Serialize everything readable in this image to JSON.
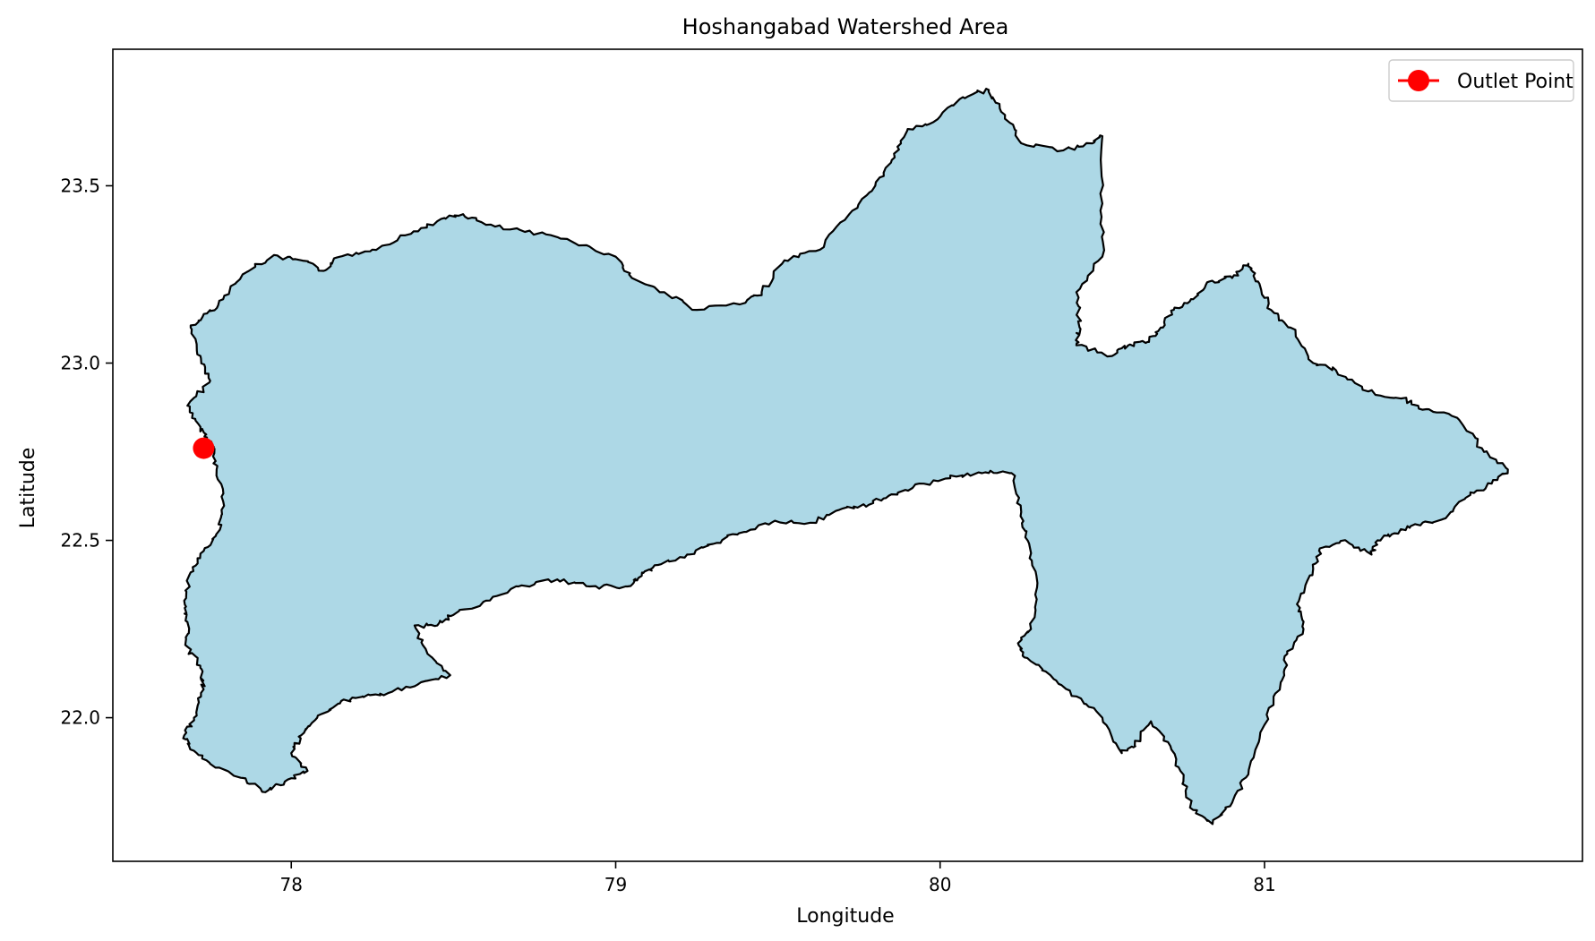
{
  "chart_data": {
    "type": "map",
    "title": "Hoshangabad Watershed Area",
    "xlabel": "Longitude",
    "ylabel": "Latitude",
    "xlim": [
      77.45,
      81.98
    ],
    "ylim": [
      21.595,
      23.885
    ],
    "xticks": [
      78,
      79,
      80,
      81
    ],
    "xtick_labels": [
      "78",
      "79",
      "80",
      "81"
    ],
    "yticks": [
      22.0,
      22.5,
      23.0,
      23.5
    ],
    "ytick_labels": [
      "22.0",
      "22.5",
      "23.0",
      "23.5"
    ],
    "grid": false,
    "legend": {
      "placement": "top-right",
      "entries": [
        {
          "label": "Outlet Point",
          "marker": "circle",
          "color": "#ff0000"
        }
      ]
    },
    "watershed": {
      "fill": "#add8e6",
      "edge": "#000000",
      "boundary_lonlat": [
        [
          77.72,
          22.82
        ],
        [
          77.68,
          22.88
        ],
        [
          77.75,
          22.95
        ],
        [
          77.72,
          23.02
        ],
        [
          77.69,
          23.1
        ],
        [
          77.74,
          23.14
        ],
        [
          77.79,
          23.18
        ],
        [
          77.85,
          23.25
        ],
        [
          77.94,
          23.3
        ],
        [
          78.03,
          23.29
        ],
        [
          78.1,
          23.26
        ],
        [
          78.15,
          23.3
        ],
        [
          78.25,
          23.32
        ],
        [
          78.35,
          23.36
        ],
        [
          78.45,
          23.4
        ],
        [
          78.53,
          23.42
        ],
        [
          78.6,
          23.39
        ],
        [
          78.72,
          23.37
        ],
        [
          78.85,
          23.35
        ],
        [
          79.0,
          23.3
        ],
        [
          79.05,
          23.24
        ],
        [
          79.15,
          23.2
        ],
        [
          79.25,
          23.15
        ],
        [
          79.4,
          23.17
        ],
        [
          79.45,
          23.2
        ],
        [
          79.52,
          23.29
        ],
        [
          79.63,
          23.32
        ],
        [
          79.72,
          23.42
        ],
        [
          79.8,
          23.5
        ],
        [
          79.86,
          23.58
        ],
        [
          79.9,
          23.66
        ],
        [
          79.98,
          23.68
        ],
        [
          80.07,
          23.75
        ],
        [
          80.15,
          23.77
        ],
        [
          80.2,
          23.7
        ],
        [
          80.25,
          23.62
        ],
        [
          80.38,
          23.6
        ],
        [
          80.46,
          23.62
        ],
        [
          80.5,
          23.64
        ],
        [
          80.5,
          23.45
        ],
        [
          80.5,
          23.3
        ],
        [
          80.42,
          23.2
        ],
        [
          80.43,
          23.1
        ],
        [
          80.42,
          23.05
        ],
        [
          80.53,
          23.02
        ],
        [
          80.58,
          23.05
        ],
        [
          80.64,
          23.06
        ],
        [
          80.68,
          23.1
        ],
        [
          80.72,
          23.15
        ],
        [
          80.78,
          23.18
        ],
        [
          80.83,
          23.23
        ],
        [
          80.9,
          23.24
        ],
        [
          80.95,
          23.28
        ],
        [
          80.98,
          23.23
        ],
        [
          81.02,
          23.15
        ],
        [
          81.08,
          23.1
        ],
        [
          81.15,
          23.0
        ],
        [
          81.22,
          22.98
        ],
        [
          81.32,
          22.92
        ],
        [
          81.42,
          22.9
        ],
        [
          81.5,
          22.87
        ],
        [
          81.6,
          22.84
        ],
        [
          81.67,
          22.76
        ],
        [
          81.75,
          22.7
        ],
        [
          81.7,
          22.66
        ],
        [
          81.62,
          22.62
        ],
        [
          81.55,
          22.56
        ],
        [
          81.45,
          22.54
        ],
        [
          81.4,
          22.52
        ],
        [
          81.35,
          22.5
        ],
        [
          81.33,
          22.46
        ],
        [
          81.25,
          22.5
        ],
        [
          81.18,
          22.48
        ],
        [
          81.15,
          22.42
        ],
        [
          81.1,
          22.32
        ],
        [
          81.12,
          22.25
        ],
        [
          81.07,
          22.18
        ],
        [
          81.05,
          22.1
        ],
        [
          81.0,
          21.98
        ],
        [
          80.95,
          21.84
        ],
        [
          80.9,
          21.76
        ],
        [
          80.84,
          21.7
        ],
        [
          80.78,
          21.74
        ],
        [
          80.75,
          21.82
        ],
        [
          80.71,
          21.92
        ],
        [
          80.65,
          21.99
        ],
        [
          80.6,
          21.92
        ],
        [
          80.56,
          21.9
        ],
        [
          80.5,
          22.0
        ],
        [
          80.42,
          22.06
        ],
        [
          80.34,
          22.12
        ],
        [
          80.26,
          22.17
        ],
        [
          80.24,
          22.21
        ],
        [
          80.28,
          22.25
        ],
        [
          80.3,
          22.38
        ],
        [
          80.27,
          22.5
        ],
        [
          80.25,
          22.58
        ],
        [
          80.22,
          22.69
        ],
        [
          80.15,
          22.69
        ],
        [
          80.05,
          22.68
        ],
        [
          79.95,
          22.66
        ],
        [
          79.85,
          22.63
        ],
        [
          79.78,
          22.6
        ],
        [
          79.7,
          22.59
        ],
        [
          79.6,
          22.55
        ],
        [
          79.48,
          22.55
        ],
        [
          79.38,
          22.52
        ],
        [
          79.3,
          22.49
        ],
        [
          79.22,
          22.46
        ],
        [
          79.12,
          22.43
        ],
        [
          79.08,
          22.4
        ],
        [
          79.03,
          22.37
        ],
        [
          78.92,
          22.37
        ],
        [
          78.82,
          22.39
        ],
        [
          78.7,
          22.37
        ],
        [
          78.6,
          22.33
        ],
        [
          78.5,
          22.29
        ],
        [
          78.45,
          22.26
        ],
        [
          78.38,
          22.26
        ],
        [
          78.42,
          22.18
        ],
        [
          78.49,
          22.12
        ],
        [
          78.4,
          22.1
        ],
        [
          78.3,
          22.07
        ],
        [
          78.22,
          22.06
        ],
        [
          78.15,
          22.04
        ],
        [
          78.08,
          22.0
        ],
        [
          78.03,
          21.95
        ],
        [
          78.0,
          21.9
        ],
        [
          78.05,
          21.85
        ],
        [
          77.98,
          21.82
        ],
        [
          77.92,
          21.79
        ],
        [
          77.85,
          21.83
        ],
        [
          77.75,
          21.87
        ],
        [
          77.69,
          21.91
        ],
        [
          77.67,
          21.95
        ],
        [
          77.7,
          22.0
        ],
        [
          77.73,
          22.08
        ],
        [
          77.72,
          22.14
        ],
        [
          77.68,
          22.2
        ],
        [
          77.68,
          22.27
        ],
        [
          77.67,
          22.33
        ],
        [
          77.69,
          22.41
        ],
        [
          77.73,
          22.47
        ],
        [
          77.78,
          22.53
        ],
        [
          77.79,
          22.61
        ],
        [
          77.77,
          22.7
        ],
        [
          77.76,
          22.76
        ],
        [
          77.74,
          22.79
        ]
      ]
    },
    "outlet_point": {
      "lon": 77.73,
      "lat": 22.76,
      "color": "#ff0000"
    }
  }
}
